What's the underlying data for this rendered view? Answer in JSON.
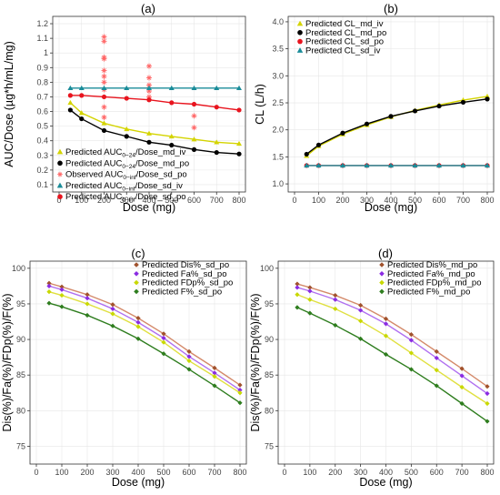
{
  "chart_data": [
    {
      "panel": "(a)",
      "type": "line",
      "title": "(a)",
      "xlabel": "Dose (mg)",
      "ylabel": "AUC/Dose (µg*h/mL/mg)",
      "xlim": [
        0,
        800
      ],
      "ylim": [
        0.05,
        1.25
      ],
      "xticks": [
        0,
        100,
        200,
        300,
        400,
        500,
        600,
        700,
        800
      ],
      "yticks": [
        0.1,
        0.2,
        0.3,
        0.4,
        0.5,
        0.6,
        0.7,
        0.8,
        0.9,
        1.0,
        1.1,
        1.2
      ],
      "ytick_labels": [
        "0.1",
        "0.2",
        "0.3",
        "0.4",
        "0.5",
        "0.6",
        "0.7",
        "0.8",
        "0.9",
        "1",
        "1.1",
        "1.2"
      ],
      "legend_position": "bottom-left",
      "x": [
        50,
        100,
        200,
        300,
        400,
        500,
        600,
        700,
        800
      ],
      "series": [
        {
          "name": "Predicted AUC",
          "sub": "0−24",
          "suffix": "/Dose_md_iv",
          "marker": "triangle",
          "color": "#d4d400",
          "line_color": "#d4d400",
          "values": [
            0.66,
            0.59,
            0.52,
            0.48,
            0.45,
            0.43,
            0.41,
            0.39,
            0.38
          ]
        },
        {
          "name": "Predicted AUC",
          "sub": "0−24",
          "suffix": "/Dose_md_po",
          "marker": "circle",
          "color": "#000000",
          "line_color": "#000000",
          "values": [
            0.61,
            0.55,
            0.47,
            0.43,
            0.39,
            0.37,
            0.34,
            0.32,
            0.31
          ]
        },
        {
          "name": "Observed AUC",
          "sub": "0−inf",
          "suffix": "/Dose_sd_po",
          "marker": "asterisk",
          "color": "#ff6666",
          "line_color": null,
          "points": [
            [
              200,
              1.11
            ],
            [
              200,
              1.08
            ],
            [
              200,
              0.97
            ],
            [
              200,
              0.96
            ],
            [
              200,
              0.88
            ],
            [
              200,
              0.84
            ],
            [
              200,
              0.8
            ],
            [
              200,
              0.75
            ],
            [
              200,
              0.63
            ],
            [
              200,
              0.56
            ],
            [
              400,
              0.91
            ],
            [
              400,
              0.83
            ],
            [
              400,
              0.78
            ],
            [
              400,
              0.74
            ],
            [
              400,
              0.7
            ],
            [
              400,
              0.68
            ],
            [
              600,
              0.57
            ],
            [
              600,
              0.49
            ]
          ]
        },
        {
          "name": "Predicted AUC",
          "sub": "0−inf",
          "suffix": "/Dose_sd_iv",
          "marker": "triangle",
          "color": "#1a8c99",
          "line_color": "#1a8c99",
          "values": [
            0.76,
            0.76,
            0.76,
            0.76,
            0.76,
            0.76,
            0.76,
            0.76,
            0.76
          ]
        },
        {
          "name": "Predicted AUC",
          "sub": "0−inf",
          "suffix": "/Dose_sd_po",
          "marker": "circle",
          "color": "#e8141e",
          "line_color": "#e8141e",
          "values": [
            0.71,
            0.71,
            0.7,
            0.69,
            0.68,
            0.66,
            0.65,
            0.63,
            0.61
          ]
        }
      ]
    },
    {
      "panel": "(b)",
      "type": "line",
      "title": "(b)",
      "xlabel": "Dose (mg)",
      "ylabel": "CL (L/h)",
      "xlim": [
        0,
        800
      ],
      "ylim": [
        0.85,
        4.1
      ],
      "xticks": [
        0,
        100,
        200,
        300,
        400,
        500,
        600,
        700,
        800
      ],
      "yticks": [
        1.0,
        1.5,
        2.0,
        2.5,
        3.0,
        3.5,
        4.0
      ],
      "ytick_labels": [
        "1.0",
        "1.5",
        "2.0",
        "2.5",
        "3.0",
        "3.5",
        "4.0"
      ],
      "legend_position": "top-left",
      "x": [
        50,
        100,
        200,
        300,
        400,
        500,
        600,
        700,
        800
      ],
      "series": [
        {
          "name": "Predicted CL_md_iv",
          "marker": "triangle",
          "color": "#d4d400",
          "line_color": "#d4d400",
          "values": [
            1.52,
            1.7,
            1.92,
            2.09,
            2.24,
            2.36,
            2.46,
            2.55,
            2.62
          ]
        },
        {
          "name": "Predicted CL_md_po",
          "marker": "circle",
          "color": "#000000",
          "line_color": "#000000",
          "values": [
            1.55,
            1.72,
            1.94,
            2.11,
            2.25,
            2.35,
            2.44,
            2.51,
            2.57
          ]
        },
        {
          "name": "Predicted CL_sd_po",
          "marker": "circle",
          "color": "#e8141e",
          "line_color": "#e8141e",
          "values": [
            1.34,
            1.34,
            1.34,
            1.34,
            1.34,
            1.34,
            1.34,
            1.34,
            1.34
          ]
        },
        {
          "name": "Predicted CL_sd_iv",
          "marker": "triangle",
          "color": "#1a8c99",
          "line_color": "#1a8c99",
          "values": [
            1.34,
            1.34,
            1.34,
            1.34,
            1.34,
            1.34,
            1.34,
            1.34,
            1.34
          ]
        }
      ]
    },
    {
      "panel": "(c)",
      "type": "line",
      "title": "(c)",
      "xlabel": "Dose (mg)",
      "ylabel": "Dis(%)/Fa(%)/FDp(%)/F(%)",
      "xlim": [
        0,
        800
      ],
      "ylim": [
        72.5,
        101
      ],
      "xticks": [
        0,
        100,
        200,
        300,
        400,
        500,
        600,
        700,
        800
      ],
      "yticks": [
        75,
        80,
        85,
        90,
        95,
        100
      ],
      "ytick_labels": [
        "75",
        "80",
        "85",
        "90",
        "95",
        "100"
      ],
      "legend_position": "top-right",
      "x": [
        50,
        100,
        200,
        300,
        400,
        500,
        600,
        700,
        800
      ],
      "series": [
        {
          "name": "Predicted Dis%_sd_po",
          "marker": "diamond",
          "color": "#a0522d",
          "line_color": "#d48a6a",
          "values": [
            97.9,
            97.4,
            96.3,
            94.9,
            93.0,
            90.8,
            88.3,
            86.0,
            83.6
          ]
        },
        {
          "name": "Predicted Fa%_sd_po",
          "marker": "diamond",
          "color": "#8a2be2",
          "line_color": "#b070f0",
          "values": [
            97.5,
            97.0,
            95.8,
            94.3,
            92.4,
            90.2,
            87.6,
            85.3,
            82.9
          ]
        },
        {
          "name": "Predicted FDp%_sd_po",
          "marker": "diamond",
          "color": "#c8d800",
          "line_color": "#e0e040",
          "values": [
            96.7,
            96.2,
            95.0,
            93.6,
            91.8,
            89.6,
            87.0,
            84.8,
            82.5
          ]
        },
        {
          "name": "Predicted F%_sd_po",
          "marker": "diamond",
          "color": "#2e7d1e",
          "line_color": "#2e7d1e",
          "values": [
            95.1,
            94.6,
            93.4,
            91.9,
            90.1,
            88.0,
            85.8,
            83.5,
            81.1
          ]
        }
      ]
    },
    {
      "panel": "(d)",
      "type": "line",
      "title": "(d)",
      "xlabel": "Dose (mg)",
      "ylabel": "Dis(%)/Fa(%)/FDp(%)/F(%)",
      "xlim": [
        0,
        800
      ],
      "ylim": [
        72.5,
        101
      ],
      "xticks": [
        0,
        100,
        200,
        300,
        400,
        500,
        600,
        700,
        800
      ],
      "yticks": [
        75,
        80,
        85,
        90,
        95,
        100
      ],
      "ytick_labels": [
        "75",
        "80",
        "85",
        "90",
        "95",
        "100"
      ],
      "legend_position": "top-right",
      "x": [
        50,
        100,
        200,
        300,
        400,
        500,
        600,
        700,
        800
      ],
      "series": [
        {
          "name": "Predicted Dis%_md_po",
          "marker": "diamond",
          "color": "#a0522d",
          "line_color": "#d48a6a",
          "values": [
            97.8,
            97.3,
            96.2,
            94.8,
            92.9,
            90.7,
            88.3,
            85.9,
            83.4
          ]
        },
        {
          "name": "Predicted Fa%_md_po",
          "marker": "diamond",
          "color": "#8a2be2",
          "line_color": "#b070f0",
          "values": [
            97.3,
            96.8,
            95.6,
            94.1,
            92.2,
            89.9,
            87.4,
            84.9,
            82.4
          ]
        },
        {
          "name": "Predicted FDp%_md_po",
          "marker": "diamond",
          "color": "#c8d800",
          "line_color": "#e0e040",
          "values": [
            96.3,
            95.6,
            94.3,
            92.6,
            90.5,
            88.1,
            85.7,
            83.3,
            81.0
          ]
        },
        {
          "name": "Predicted F%_md_po",
          "marker": "diamond",
          "color": "#2e7d1e",
          "line_color": "#2e7d1e",
          "values": [
            94.5,
            93.7,
            92.0,
            90.1,
            87.9,
            85.8,
            83.5,
            81.0,
            78.5
          ]
        }
      ]
    }
  ]
}
